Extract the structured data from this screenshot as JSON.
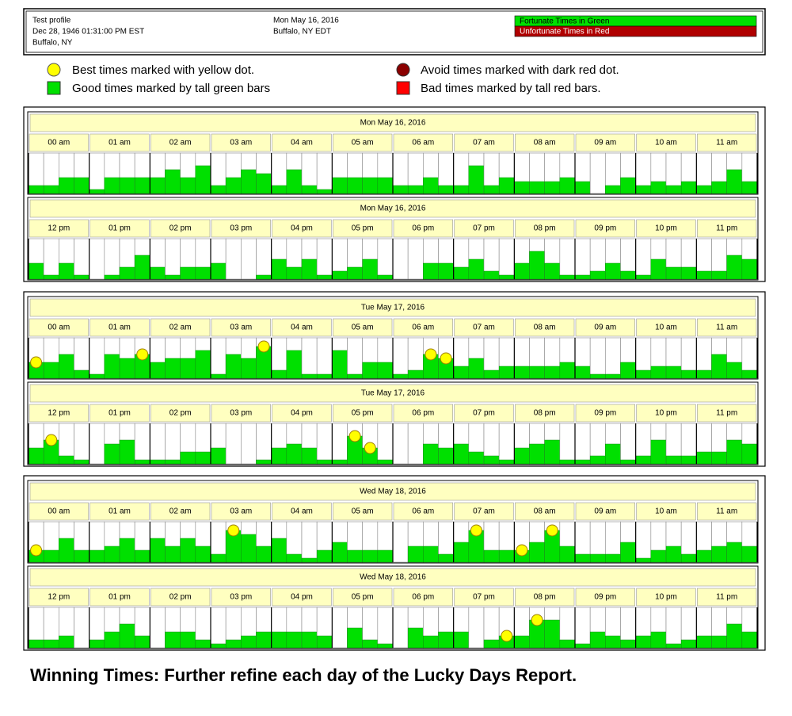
{
  "header": {
    "left": [
      "Test profile",
      "Dec 28, 1946 01:31:00 PM EST",
      "Buffalo, NY"
    ],
    "middle": [
      "Mon May 16, 2016",
      "Buffalo, NY  EDT"
    ],
    "key": [
      "Fortunate Times in Green",
      "Unfortunate Times in Red"
    ]
  },
  "legend": [
    "Best times marked with yellow dot.",
    "Good times marked by tall green bars",
    "Avoid times marked with dark red dot.",
    "Bad times marked by tall red bars."
  ],
  "days": [
    {
      "panels": [
        {
          "date": "Mon May 16, 2016",
          "hours": [
            "00 am",
            "01 am",
            "02 am",
            "03 am",
            "04 am",
            "05 am",
            "06 am",
            "07 am",
            "08 am",
            "09 am",
            "10 am",
            "11 am"
          ],
          "bars": [
            1,
            1,
            2,
            2,
            0.5,
            2,
            2,
            2,
            2,
            3,
            2,
            3.5,
            1,
            2,
            3,
            2.5,
            1,
            3,
            1,
            0.5,
            2,
            2,
            2,
            2,
            1,
            1,
            2,
            1,
            1,
            3.5,
            1,
            2,
            1.5,
            1.5,
            1.5,
            2,
            1.5,
            0,
            1,
            2,
            1,
            1.5,
            1,
            1.5,
            1,
            1.5,
            3,
            1.5
          ],
          "best": []
        },
        {
          "date": "Mon May 16, 2016",
          "hours": [
            "12 pm",
            "01 pm",
            "02 pm",
            "03 pm",
            "04 pm",
            "05 pm",
            "06 pm",
            "07 pm",
            "08 pm",
            "09 pm",
            "10 pm",
            "11 pm"
          ],
          "bars": [
            2,
            0.5,
            2,
            0.5,
            0,
            0.5,
            1.5,
            3,
            1.5,
            0.5,
            1.5,
            1.5,
            2,
            0,
            0,
            0.5,
            2.5,
            1.5,
            2.5,
            0.5,
            1,
            1.5,
            2.5,
            0.5,
            0,
            0,
            2,
            2,
            1.5,
            2.5,
            1,
            0.5,
            2,
            3.5,
            2,
            0.5,
            0.5,
            1,
            2,
            1,
            0.5,
            2.5,
            1.5,
            1.5,
            1,
            1,
            3,
            2.5
          ],
          "best": []
        }
      ]
    },
    {
      "panels": [
        {
          "date": "Tue May 17, 2016",
          "hours": [
            "00 am",
            "01 am",
            "02 am",
            "03 am",
            "04 am",
            "05 am",
            "06 am",
            "07 am",
            "08 am",
            "09 am",
            "10 am",
            "11 am"
          ],
          "bars": [
            2,
            2,
            3,
            1,
            0.5,
            3,
            2.5,
            3,
            2,
            2.5,
            2.5,
            3.5,
            0.5,
            3,
            2.5,
            4,
            1,
            3.5,
            0.5,
            0.5,
            3.5,
            0.5,
            2,
            2,
            0.5,
            1,
            3,
            2.5,
            1.5,
            2.5,
            1,
            1.5,
            1.5,
            1.5,
            1.5,
            2,
            1.5,
            0.5,
            0.5,
            2,
            1,
            1.5,
            1.5,
            1,
            1,
            3,
            2,
            1
          ],
          "best": [
            0,
            7,
            15,
            26,
            27
          ]
        },
        {
          "date": "Tue May 17, 2016",
          "hours": [
            "12 pm",
            "01 pm",
            "02 pm",
            "03 pm",
            "04 pm",
            "05 pm",
            "06 pm",
            "07 pm",
            "08 pm",
            "09 pm",
            "10 pm",
            "11 pm"
          ],
          "bars": [
            2,
            3,
            1,
            0.5,
            0,
            2.5,
            3,
            0.5,
            0.5,
            0.5,
            1.5,
            1.5,
            2,
            0,
            0,
            0.5,
            2,
            2.5,
            2,
            0.5,
            0.5,
            3.5,
            2,
            0.5,
            0,
            0,
            2.5,
            2,
            2.5,
            1.5,
            1,
            0.5,
            2,
            2.5,
            3,
            0.5,
            0.5,
            1,
            2.5,
            0.5,
            1,
            3,
            1,
            1,
            1.5,
            1.5,
            3,
            2.5
          ],
          "best": [
            1,
            21,
            22
          ]
        }
      ]
    },
    {
      "panels": [
        {
          "date": "Wed May 18, 2016",
          "hours": [
            "00 am",
            "01 am",
            "02 am",
            "03 am",
            "04 am",
            "05 am",
            "06 am",
            "07 am",
            "08 am",
            "09 am",
            "10 am",
            "11 am"
          ],
          "bars": [
            1.5,
            1.5,
            3,
            1.5,
            1.5,
            2,
            3,
            1.5,
            3,
            2,
            3,
            2,
            1,
            4,
            3.5,
            2,
            3,
            1,
            0.5,
            1.5,
            2.5,
            1.5,
            1.5,
            1.5,
            0,
            2,
            2,
            1,
            2.5,
            4,
            1.5,
            1.5,
            1.5,
            2.5,
            4,
            2,
            1,
            1,
            1,
            2.5,
            0.5,
            1.5,
            2,
            1,
            1.5,
            2,
            2.5,
            2
          ],
          "best": [
            0,
            13,
            29,
            32,
            34
          ]
        },
        {
          "date": "Wed May 18, 2016",
          "hours": [
            "12 pm",
            "01 pm",
            "02 pm",
            "03 pm",
            "04 pm",
            "05 pm",
            "06 pm",
            "07 pm",
            "08 pm",
            "09 pm",
            "10 pm",
            "11 pm"
          ],
          "bars": [
            1,
            1,
            1.5,
            0,
            1,
            2,
            3,
            1.5,
            0,
            2,
            2,
            1,
            0.5,
            1,
            1.5,
            2,
            2,
            2,
            2,
            1.5,
            0,
            2.5,
            1,
            0.5,
            0,
            2.5,
            1.5,
            2,
            2,
            0,
            1,
            1.5,
            1.5,
            3.5,
            3.5,
            1,
            0.5,
            2,
            1.5,
            1,
            1.5,
            2,
            0.5,
            1,
            1.5,
            1.5,
            3,
            2
          ],
          "best": [
            31,
            33
          ]
        }
      ]
    }
  ],
  "footer": "Winning Times:  Further refine each day of the Lucky Days Report."
}
